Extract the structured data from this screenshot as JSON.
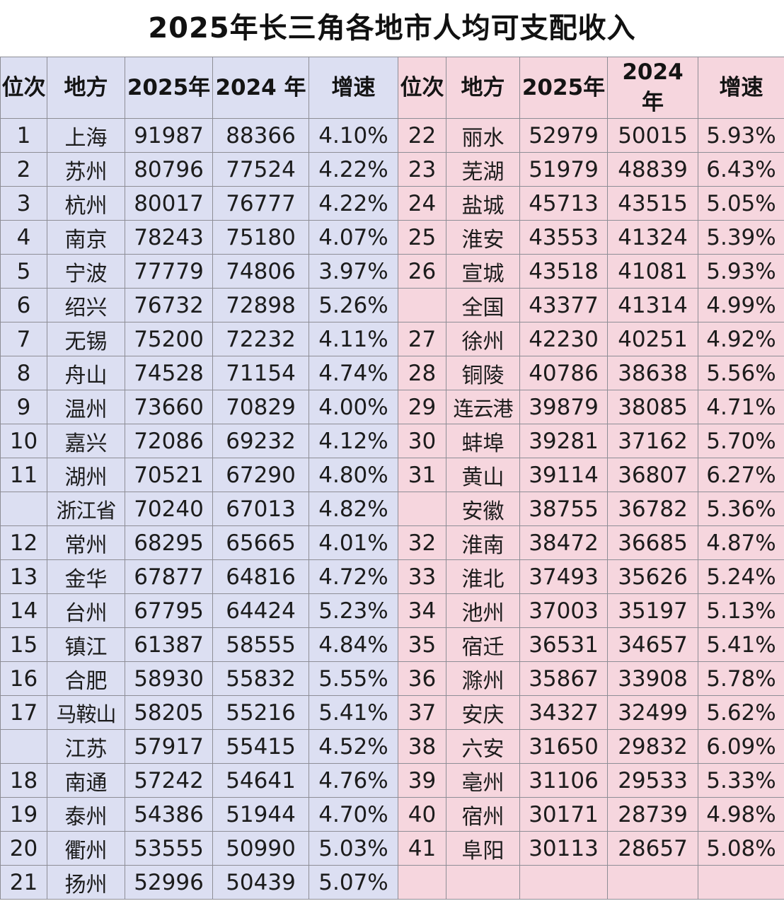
{
  "title": "2025年长三角各地市人均可支配收入",
  "headers": {
    "rank": "位次",
    "place": "地方",
    "y2025": "2025年",
    "y2024_left": "2024 年",
    "y2024_right": "2024 年",
    "growth": "增速"
  },
  "left_rows": [
    {
      "rank": "1",
      "place": "上海",
      "y2025": "91987",
      "y2024": "88366",
      "growth": "4.10%"
    },
    {
      "rank": "2",
      "place": "苏州",
      "y2025": "80796",
      "y2024": "77524",
      "growth": "4.22%"
    },
    {
      "rank": "3",
      "place": "杭州",
      "y2025": "80017",
      "y2024": "76777",
      "growth": "4.22%"
    },
    {
      "rank": "4",
      "place": "南京",
      "y2025": "78243",
      "y2024": "75180",
      "growth": "4.07%"
    },
    {
      "rank": "5",
      "place": "宁波",
      "y2025": "77779",
      "y2024": "74806",
      "growth": "3.97%"
    },
    {
      "rank": "6",
      "place": "绍兴",
      "y2025": "76732",
      "y2024": "72898",
      "growth": "5.26%"
    },
    {
      "rank": "7",
      "place": "无锡",
      "y2025": "75200",
      "y2024": "72232",
      "growth": "4.11%"
    },
    {
      "rank": "8",
      "place": "舟山",
      "y2025": "74528",
      "y2024": "71154",
      "growth": "4.74%"
    },
    {
      "rank": "9",
      "place": "温州",
      "y2025": "73660",
      "y2024": "70829",
      "growth": "4.00%"
    },
    {
      "rank": "10",
      "place": "嘉兴",
      "y2025": "72086",
      "y2024": "69232",
      "growth": "4.12%"
    },
    {
      "rank": "11",
      "place": "湖州",
      "y2025": "70521",
      "y2024": "67290",
      "growth": "4.80%"
    },
    {
      "rank": "",
      "place": "浙江省",
      "y2025": "70240",
      "y2024": "67013",
      "growth": "4.82%"
    },
    {
      "rank": "12",
      "place": "常州",
      "y2025": "68295",
      "y2024": "65665",
      "growth": "4.01%"
    },
    {
      "rank": "13",
      "place": "金华",
      "y2025": "67877",
      "y2024": "64816",
      "growth": "4.72%"
    },
    {
      "rank": "14",
      "place": "台州",
      "y2025": "67795",
      "y2024": "64424",
      "growth": "5.23%"
    },
    {
      "rank": "15",
      "place": "镇江",
      "y2025": "61387",
      "y2024": "58555",
      "growth": "4.84%"
    },
    {
      "rank": "16",
      "place": "合肥",
      "y2025": "58930",
      "y2024": "55832",
      "growth": "5.55%"
    },
    {
      "rank": "17",
      "place": "马鞍山",
      "y2025": "58205",
      "y2024": "55216",
      "growth": "5.41%"
    },
    {
      "rank": "",
      "place": "江苏",
      "y2025": "57917",
      "y2024": "55415",
      "growth": "4.52%"
    },
    {
      "rank": "18",
      "place": "南通",
      "y2025": "57242",
      "y2024": "54641",
      "growth": "4.76%"
    },
    {
      "rank": "19",
      "place": "泰州",
      "y2025": "54386",
      "y2024": "51944",
      "growth": "4.70%"
    },
    {
      "rank": "20",
      "place": "衢州",
      "y2025": "53555",
      "y2024": "50990",
      "growth": "5.03%"
    },
    {
      "rank": "21",
      "place": "扬州",
      "y2025": "52996",
      "y2024": "50439",
      "growth": "5.07%"
    }
  ],
  "right_rows": [
    {
      "rank": "22",
      "place": "丽水",
      "y2025": "52979",
      "y2024": "50015",
      "growth": "5.93%"
    },
    {
      "rank": "23",
      "place": "芜湖",
      "y2025": "51979",
      "y2024": "48839",
      "growth": "6.43%"
    },
    {
      "rank": "24",
      "place": "盐城",
      "y2025": "45713",
      "y2024": "43515",
      "growth": "5.05%"
    },
    {
      "rank": "25",
      "place": "淮安",
      "y2025": "43553",
      "y2024": "41324",
      "growth": "5.39%"
    },
    {
      "rank": "26",
      "place": "宣城",
      "y2025": "43518",
      "y2024": "41081",
      "growth": "5.93%"
    },
    {
      "rank": "",
      "place": "全国",
      "y2025": "43377",
      "y2024": "41314",
      "growth": "4.99%"
    },
    {
      "rank": "27",
      "place": "徐州",
      "y2025": "42230",
      "y2024": "40251",
      "growth": "4.92%"
    },
    {
      "rank": "28",
      "place": "铜陵",
      "y2025": "40786",
      "y2024": "38638",
      "growth": "5.56%"
    },
    {
      "rank": "29",
      "place": "连云港",
      "y2025": "39879",
      "y2024": "38085",
      "growth": "4.71%"
    },
    {
      "rank": "30",
      "place": "蚌埠",
      "y2025": "39281",
      "y2024": "37162",
      "growth": "5.70%"
    },
    {
      "rank": "31",
      "place": "黄山",
      "y2025": "39114",
      "y2024": "36807",
      "growth": "6.27%"
    },
    {
      "rank": "",
      "place": "安徽",
      "y2025": "38755",
      "y2024": "36782",
      "growth": "5.36%"
    },
    {
      "rank": "32",
      "place": "淮南",
      "y2025": "38472",
      "y2024": "36685",
      "growth": "4.87%"
    },
    {
      "rank": "33",
      "place": "淮北",
      "y2025": "37493",
      "y2024": "35626",
      "growth": "5.24%"
    },
    {
      "rank": "34",
      "place": "池州",
      "y2025": "37003",
      "y2024": "35197",
      "growth": "5.13%"
    },
    {
      "rank": "35",
      "place": "宿迁",
      "y2025": "36531",
      "y2024": "34657",
      "growth": "5.41%"
    },
    {
      "rank": "36",
      "place": "滁州",
      "y2025": "35867",
      "y2024": "33908",
      "growth": "5.78%"
    },
    {
      "rank": "37",
      "place": "安庆",
      "y2025": "34327",
      "y2024": "32499",
      "growth": "5.62%"
    },
    {
      "rank": "38",
      "place": "六安",
      "y2025": "31650",
      "y2024": "29832",
      "growth": "6.09%"
    },
    {
      "rank": "39",
      "place": "亳州",
      "y2025": "31106",
      "y2024": "29533",
      "growth": "5.33%"
    },
    {
      "rank": "40",
      "place": "宿州",
      "y2025": "30171",
      "y2024": "28739",
      "growth": "4.98%"
    },
    {
      "rank": "41",
      "place": "阜阳",
      "y2025": "30113",
      "y2024": "28657",
      "growth": "5.08%"
    },
    {
      "rank": "",
      "place": "",
      "y2025": "",
      "y2024": "",
      "growth": ""
    }
  ],
  "colors": {
    "left_panel": "#dcdff2",
    "right_panel": "#f6d6de",
    "grid_line": "#8e8e96",
    "text": "#1c1c1c"
  }
}
